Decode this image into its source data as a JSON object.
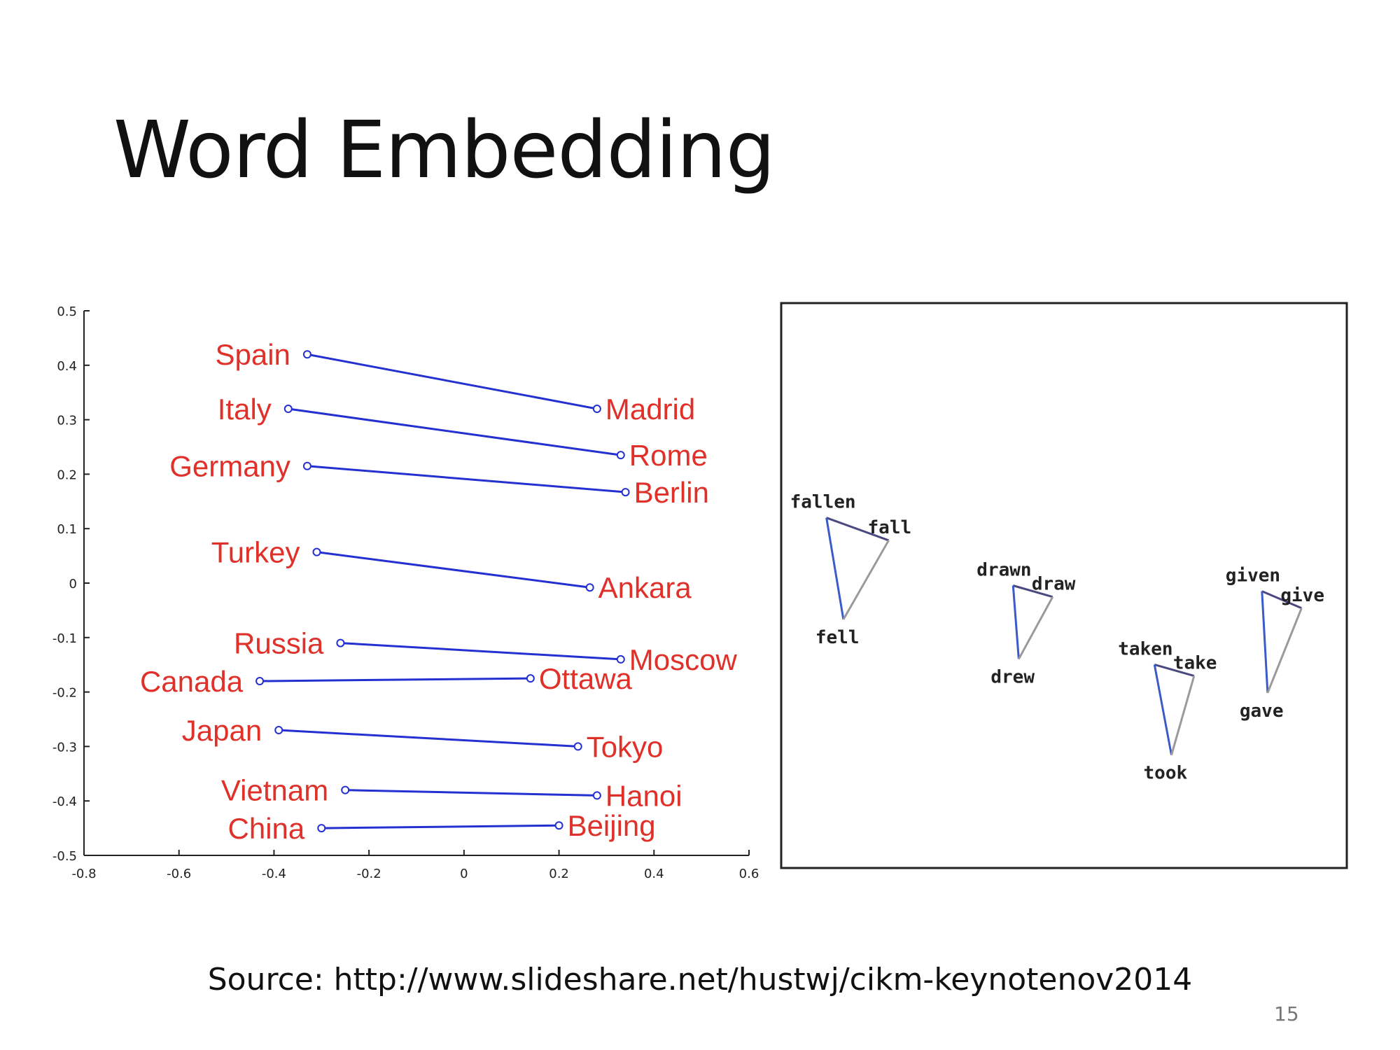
{
  "slide": {
    "title": "Word Embedding",
    "source": "Source: http://www.slideshare.net/hustwj/cikm-keynotenov2014",
    "page_number": "15"
  },
  "colors": {
    "label_red": "#e0302a",
    "line_blue": "#2430d0",
    "triangle_blue": "#3a5bc8",
    "triangle_gray": "#9a9a9a",
    "triangle_dark": "#4a4a80",
    "axis": "#222222"
  },
  "chart_data": [
    {
      "type": "line",
      "title": "",
      "xlabel": "",
      "ylabel": "",
      "xlim": [
        -0.8,
        0.6
      ],
      "ylim": [
        -0.5,
        0.5
      ],
      "x_ticks": [
        "-0.8",
        "-0.6",
        "-0.4",
        "-0.2",
        "0",
        "0.2",
        "0.4",
        "0.6"
      ],
      "y_ticks": [
        "0.5",
        "0.4",
        "0.3",
        "0.2",
        "0.1",
        "0",
        "-0.1",
        "-0.2",
        "-0.3",
        "-0.4",
        "-0.5"
      ],
      "grid": false,
      "series": [
        {
          "country": "Spain",
          "capital": "Madrid",
          "country_xy": [
            -0.33,
            0.42
          ],
          "capital_xy": [
            0.28,
            0.32
          ]
        },
        {
          "country": "Italy",
          "capital": "Rome",
          "country_xy": [
            -0.37,
            0.32
          ],
          "capital_xy": [
            0.33,
            0.235
          ]
        },
        {
          "country": "Germany",
          "capital": "Berlin",
          "country_xy": [
            -0.33,
            0.215
          ],
          "capital_xy": [
            0.34,
            0.167
          ]
        },
        {
          "country": "Turkey",
          "capital": "Ankara",
          "country_xy": [
            -0.31,
            0.057
          ],
          "capital_xy": [
            0.265,
            -0.008
          ]
        },
        {
          "country": "Russia",
          "capital": "Moscow",
          "country_xy": [
            -0.26,
            -0.11
          ],
          "capital_xy": [
            0.33,
            -0.14
          ]
        },
        {
          "country": "Canada",
          "capital": "Ottawa",
          "country_xy": [
            -0.43,
            -0.18
          ],
          "capital_xy": [
            0.14,
            -0.175
          ]
        },
        {
          "country": "Japan",
          "capital": "Tokyo",
          "country_xy": [
            -0.39,
            -0.27
          ],
          "capital_xy": [
            0.24,
            -0.3
          ]
        },
        {
          "country": "Vietnam",
          "capital": "Hanoi",
          "country_xy": [
            -0.25,
            -0.38
          ],
          "capital_xy": [
            0.28,
            -0.39
          ]
        },
        {
          "country": "China",
          "capital": "Beijing",
          "country_xy": [
            -0.3,
            -0.45
          ],
          "capital_xy": [
            0.2,
            -0.445
          ]
        }
      ]
    },
    {
      "type": "scatter",
      "title": "",
      "xlabel": "",
      "ylabel": "",
      "grid": false,
      "ticks": false,
      "xlim": [
        0,
        100
      ],
      "ylim": [
        0,
        100
      ],
      "series": [
        {
          "words": [
            "fallen",
            "fall",
            "fell"
          ],
          "points": [
            [
              8,
              62
            ],
            [
              19,
              58
            ],
            [
              11,
              44
            ]
          ]
        },
        {
          "words": [
            "drawn",
            "draw",
            "drew"
          ],
          "points": [
            [
              41,
              50
            ],
            [
              48,
              48
            ],
            [
              42,
              37
            ]
          ]
        },
        {
          "words": [
            "taken",
            "take",
            "took"
          ],
          "points": [
            [
              66,
              36
            ],
            [
              73,
              34
            ],
            [
              69,
              20
            ]
          ]
        },
        {
          "words": [
            "given",
            "give",
            "gave"
          ],
          "points": [
            [
              85,
              49
            ],
            [
              92,
              46
            ],
            [
              86,
              31
            ]
          ]
        }
      ]
    }
  ]
}
